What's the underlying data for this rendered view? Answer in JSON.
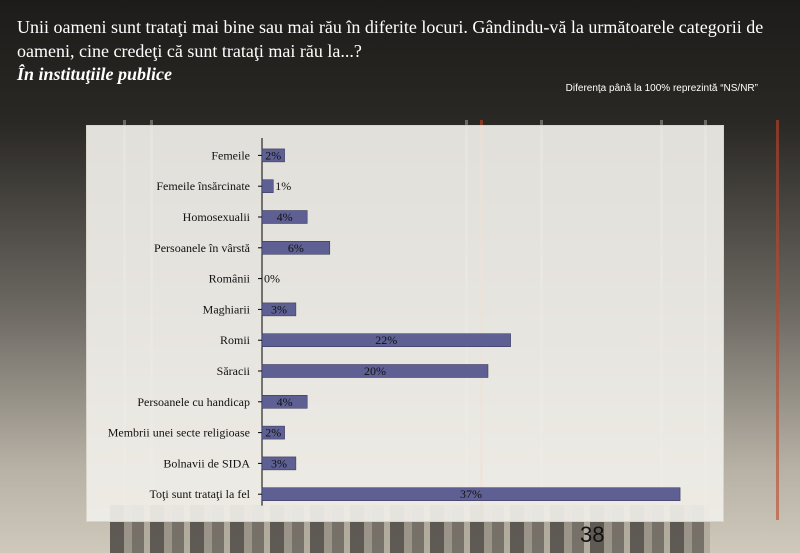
{
  "slide": {
    "question": "Unii oameni sunt trataţi mai bine sau mai rău în diferite locuri. Gândindu-vă la următoarele categorii de oameni, cine credeţi că sunt trataţi mai rău la...?",
    "subtitle": "În instituţiile publice",
    "note": "Diferenţa până la 100% reprezintă  “NS/NR”",
    "page_number": "38"
  },
  "colors": {
    "bar": "#5e6094",
    "text": "#ffffff"
  },
  "chart_data": {
    "type": "bar",
    "orientation": "horizontal",
    "categories": [
      "Femeile",
      "Femeile  însărcinate",
      "Homosexualii",
      "Persoanele în vârstă",
      "Românii",
      "Maghiarii",
      "Romii",
      "Săracii",
      "Persoanele cu handicap",
      "Membrii unei secte religioase",
      "Bolnavii de SIDA",
      "Toţi sunt trataţi la fel"
    ],
    "values": [
      2,
      1,
      4,
      6,
      0,
      3,
      22,
      20,
      4,
      2,
      3,
      37
    ],
    "value_labels": [
      "2%",
      "1%",
      "4%",
      "6%",
      "0%",
      "3%",
      "22%",
      "20%",
      "4%",
      "2%",
      "3%",
      "37%"
    ],
    "xlim": [
      0,
      40
    ],
    "grid": false,
    "legend": "none"
  }
}
